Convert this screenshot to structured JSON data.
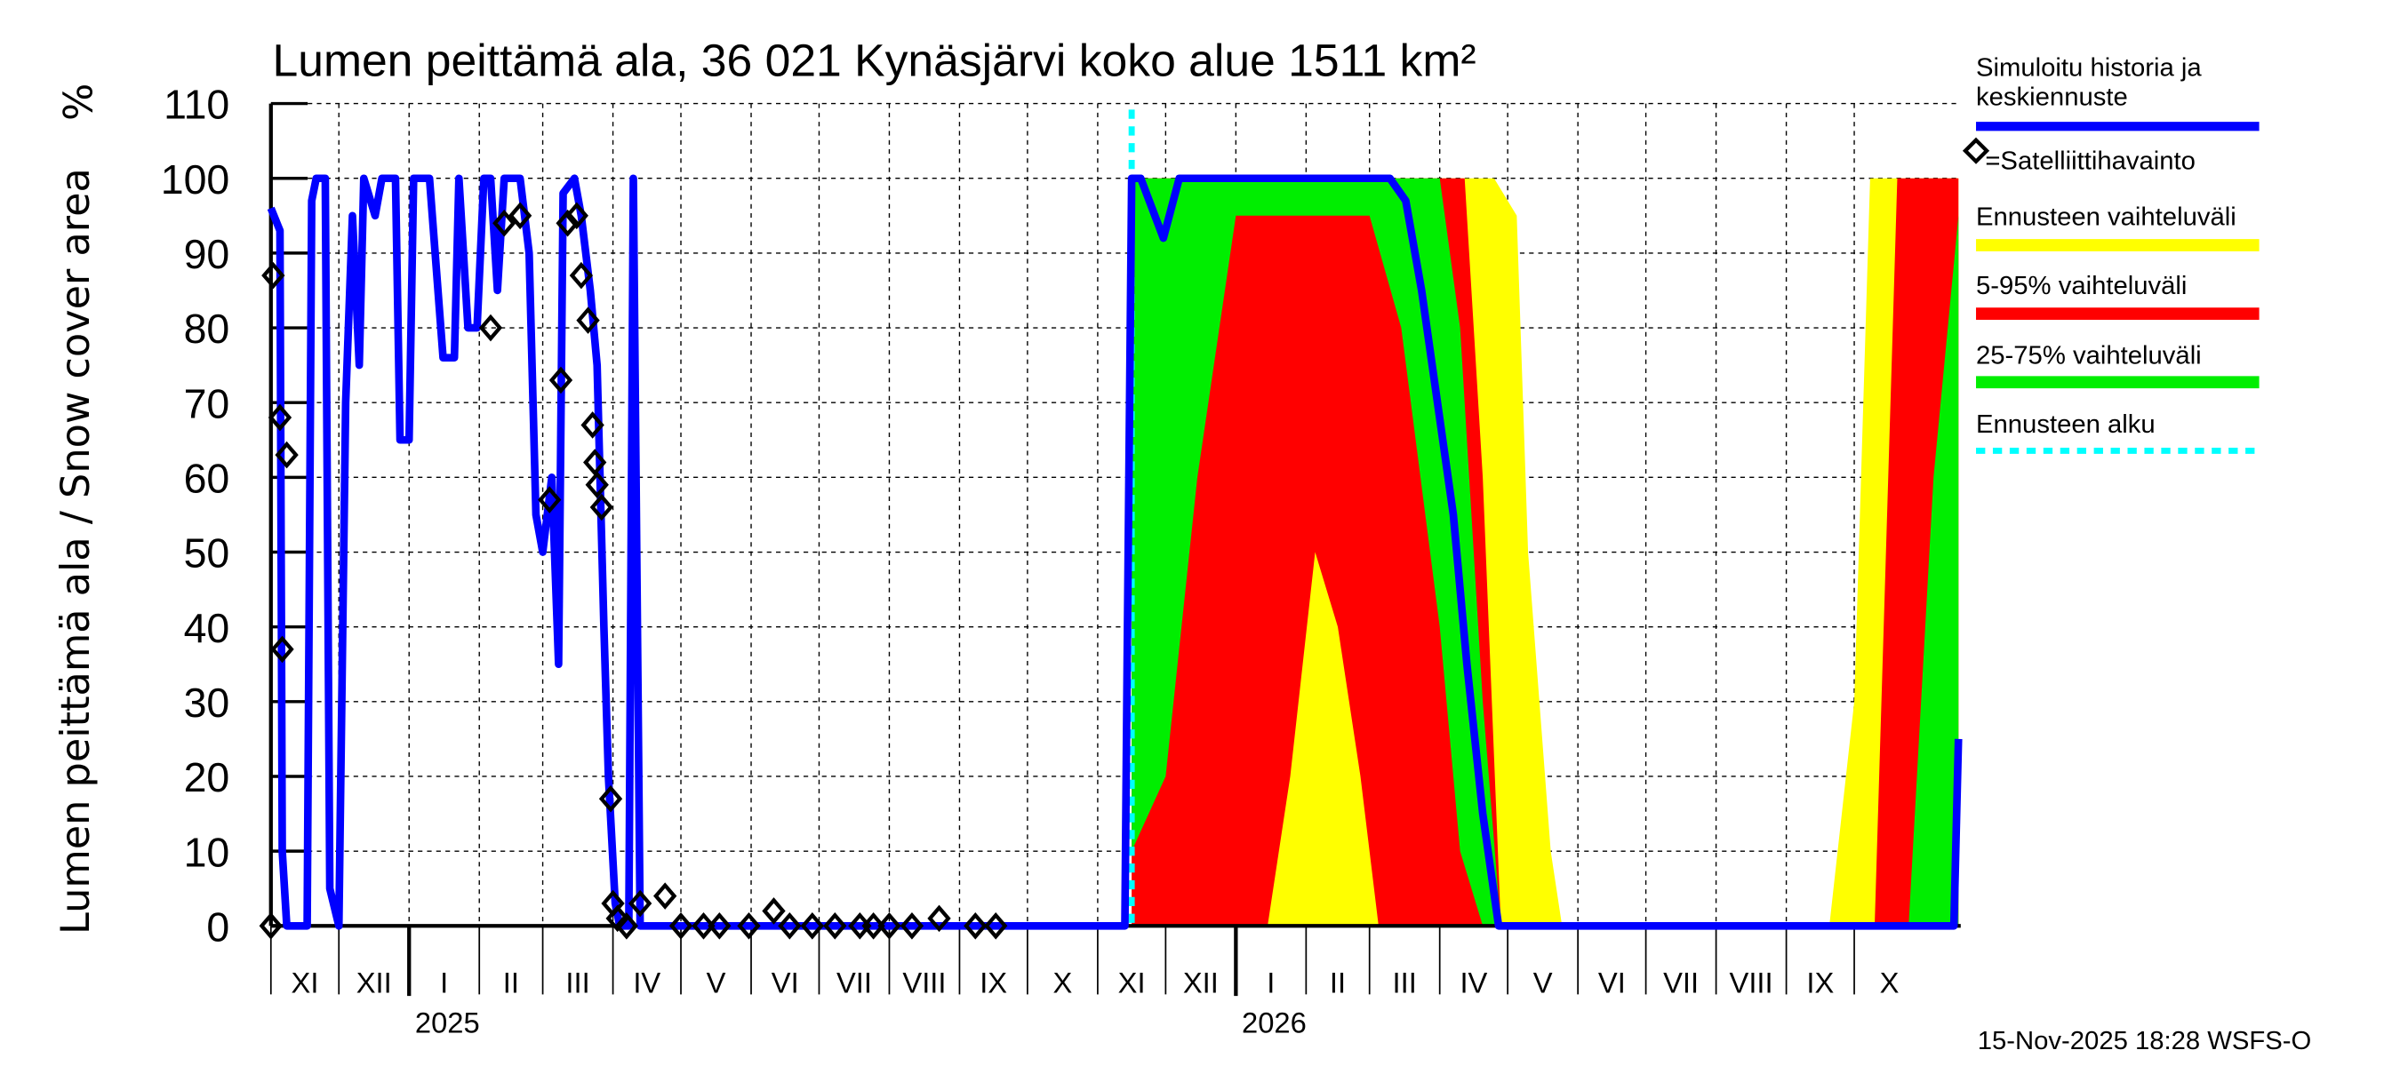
{
  "chart_data": {
    "type": "area",
    "title": "Lumen peittämä ala, 36 021 Kynäsjärvi koko alue 1511 km²",
    "ylabel": "Lumen peittämä ala / Snow cover area",
    "yunit": "%",
    "ylim": [
      0,
      110
    ],
    "yticks": [
      0,
      10,
      20,
      30,
      40,
      50,
      60,
      70,
      80,
      90,
      100,
      110
    ],
    "xlim": [
      "2024-11-01",
      "2026-11-17"
    ],
    "month_labels": [
      "XI",
      "XII",
      "I",
      "II",
      "III",
      "IV",
      "V",
      "VI",
      "VII",
      "VIII",
      "IX",
      "X",
      "XI",
      "XII",
      "I",
      "II",
      "III",
      "IV",
      "V",
      "VI",
      "VII",
      "VIII",
      "IX",
      "X"
    ],
    "year_labels": [
      "2025",
      "2026"
    ],
    "grid": true,
    "legend_position": "right",
    "forecast_start": "2025-11-16",
    "footer": "15-Nov-2025 18:28 WSFS-O",
    "legend": [
      {
        "label": "Simuloitu historia ja keskiennuste",
        "line1": "Simuloitu historia ja",
        "line2": "keskiennuste",
        "color": "#0000ff",
        "style": "line"
      },
      {
        "label": "=Satelliittihavainto",
        "color": "#000000",
        "style": "diamond"
      },
      {
        "label": "Ennusteen vaihteluväli",
        "color": "#ffff00",
        "style": "line"
      },
      {
        "label": "5-95% vaihteluväli",
        "color": "#ff0000",
        "style": "line"
      },
      {
        "label": "25-75% vaihteluväli",
        "color": "#00ee00",
        "style": "line"
      },
      {
        "label": "Ennusteen alku",
        "color": "#00ffff",
        "style": "dotted"
      }
    ],
    "series": [
      {
        "name": "Simuloitu historia ja keskiennuste",
        "color": "#0000ff",
        "points": [
          [
            "2024-11-01",
            96
          ],
          [
            "2024-11-05",
            93
          ],
          [
            "2024-11-06",
            10
          ],
          [
            "2024-11-08",
            0
          ],
          [
            "2024-11-17",
            0
          ],
          [
            "2024-11-19",
            97
          ],
          [
            "2024-11-21",
            100
          ],
          [
            "2024-11-25",
            100
          ],
          [
            "2024-11-27",
            5
          ],
          [
            "2024-12-01",
            0
          ],
          [
            "2024-12-04",
            70
          ],
          [
            "2024-12-07",
            95
          ],
          [
            "2024-12-10",
            75
          ],
          [
            "2024-12-12",
            100
          ],
          [
            "2024-12-17",
            95
          ],
          [
            "2024-12-20",
            100
          ],
          [
            "2024-12-26",
            100
          ],
          [
            "2024-12-28",
            65
          ],
          [
            "2025-01-01",
            65
          ],
          [
            "2025-01-03",
            100
          ],
          [
            "2025-01-10",
            100
          ],
          [
            "2025-01-16",
            76
          ],
          [
            "2025-01-21",
            76
          ],
          [
            "2025-01-23",
            100
          ],
          [
            "2025-01-27",
            80
          ],
          [
            "2025-01-31",
            80
          ],
          [
            "2025-02-03",
            100
          ],
          [
            "2025-02-06",
            100
          ],
          [
            "2025-02-09",
            85
          ],
          [
            "2025-02-12",
            100
          ],
          [
            "2025-02-19",
            100
          ],
          [
            "2025-02-23",
            90
          ],
          [
            "2025-02-26",
            55
          ],
          [
            "2025-03-01",
            50
          ],
          [
            "2025-03-05",
            60
          ],
          [
            "2025-03-08",
            35
          ],
          [
            "2025-03-10",
            98
          ],
          [
            "2025-03-15",
            100
          ],
          [
            "2025-03-18",
            95
          ],
          [
            "2025-03-22",
            85
          ],
          [
            "2025-03-25",
            75
          ],
          [
            "2025-03-28",
            40
          ],
          [
            "2025-03-30",
            20
          ],
          [
            "2025-04-02",
            3
          ],
          [
            "2025-04-04",
            0
          ],
          [
            "2025-04-08",
            0
          ],
          [
            "2025-04-10",
            100
          ],
          [
            "2025-04-13",
            0
          ],
          [
            "2025-11-13",
            0
          ],
          [
            "2025-11-14",
            35
          ],
          [
            "2025-11-16",
            100
          ],
          [
            "2025-11-20",
            100
          ],
          [
            "2025-11-30",
            92
          ],
          [
            "2025-12-07",
            100
          ],
          [
            "2025-12-27",
            100
          ],
          [
            "2026-03-04",
            100
          ],
          [
            "2026-03-10",
            100
          ],
          [
            "2026-03-17",
            97
          ],
          [
            "2026-03-24",
            85
          ],
          [
            "2026-03-31",
            70
          ],
          [
            "2026-04-07",
            55
          ],
          [
            "2026-04-13",
            35
          ],
          [
            "2026-04-20",
            15
          ],
          [
            "2026-04-27",
            0
          ],
          [
            "2026-11-14",
            0
          ],
          [
            "2026-11-16",
            25
          ]
        ]
      }
    ],
    "bands": [
      {
        "name": "Ennusteen vaihteluväli",
        "color": "#ffff00",
        "points": [
          [
            "2025-11-16",
            0,
            100
          ],
          [
            "2026-04-25",
            0,
            100
          ],
          [
            "2026-05-05",
            0,
            95
          ],
          [
            "2026-05-10",
            0,
            50
          ],
          [
            "2026-05-20",
            0,
            10
          ],
          [
            "2026-05-25",
            0,
            0
          ],
          [
            "2026-09-20",
            0,
            0
          ],
          [
            "2026-10-01",
            0,
            30
          ],
          [
            "2026-10-08",
            0,
            100
          ],
          [
            "2026-11-16",
            0,
            100
          ]
        ]
      },
      {
        "name": "5-95% vaihteluväli",
        "color": "#ff0000",
        "points": [
          [
            "2025-11-16",
            0,
            100
          ],
          [
            "2026-01-15",
            0,
            100
          ],
          [
            "2026-01-25",
            20,
            100
          ],
          [
            "2026-02-05",
            50,
            100
          ],
          [
            "2026-02-15",
            40,
            100
          ],
          [
            "2026-02-25",
            20,
            100
          ],
          [
            "2026-03-05",
            0,
            100
          ],
          [
            "2026-04-12",
            0,
            100
          ],
          [
            "2026-04-20",
            0,
            60
          ],
          [
            "2026-04-28",
            0,
            0
          ],
          [
            "2026-10-10",
            0,
            0
          ],
          [
            "2026-10-20",
            0,
            100
          ],
          [
            "2026-11-16",
            0,
            100
          ]
        ]
      },
      {
        "name": "25-75% vaihteluväli",
        "color": "#00ee00",
        "points": [
          [
            "2025-11-16",
            10,
            100
          ],
          [
            "2025-12-01",
            20,
            100
          ],
          [
            "2025-12-15",
            60,
            100
          ],
          [
            "2026-01-01",
            95,
            100
          ],
          [
            "2026-03-01",
            95,
            100
          ],
          [
            "2026-03-15",
            80,
            100
          ],
          [
            "2026-04-01",
            40,
            100
          ],
          [
            "2026-04-10",
            10,
            80
          ],
          [
            "2026-04-20",
            0,
            30
          ],
          [
            "2026-04-28",
            0,
            0
          ],
          [
            "2026-10-25",
            0,
            0
          ],
          [
            "2026-11-05",
            0,
            60
          ],
          [
            "2026-11-16",
            0,
            95
          ]
        ]
      }
    ],
    "observations": [
      [
        "2024-11-01",
        0
      ],
      [
        "2024-11-02",
        87
      ],
      [
        "2024-11-05",
        68
      ],
      [
        "2024-11-06",
        37
      ],
      [
        "2024-11-08",
        63
      ],
      [
        "2025-02-06",
        80
      ],
      [
        "2025-02-12",
        94
      ],
      [
        "2025-02-19",
        95
      ],
      [
        "2025-03-04",
        57
      ],
      [
        "2025-03-09",
        73
      ],
      [
        "2025-03-12",
        94
      ],
      [
        "2025-03-16",
        95
      ],
      [
        "2025-03-18",
        87
      ],
      [
        "2025-03-21",
        81
      ],
      [
        "2025-03-23",
        67
      ],
      [
        "2025-03-24",
        62
      ],
      [
        "2025-03-25",
        59
      ],
      [
        "2025-03-27",
        56
      ],
      [
        "2025-03-31",
        17
      ],
      [
        "2025-04-01",
        3
      ],
      [
        "2025-04-03",
        1
      ],
      [
        "2025-04-07",
        0
      ],
      [
        "2025-04-13",
        3
      ],
      [
        "2025-04-24",
        4
      ],
      [
        "2025-05-01",
        0
      ],
      [
        "2025-05-11",
        0
      ],
      [
        "2025-05-18",
        0
      ],
      [
        "2025-05-31",
        0
      ],
      [
        "2025-06-11",
        2
      ],
      [
        "2025-06-18",
        0
      ],
      [
        "2025-06-28",
        0
      ],
      [
        "2025-07-08",
        0
      ],
      [
        "2025-07-19",
        0
      ],
      [
        "2025-07-25",
        0
      ],
      [
        "2025-08-01",
        0
      ],
      [
        "2025-08-11",
        0
      ],
      [
        "2025-08-23",
        1
      ],
      [
        "2025-09-08",
        0
      ],
      [
        "2025-09-17",
        0
      ]
    ]
  }
}
